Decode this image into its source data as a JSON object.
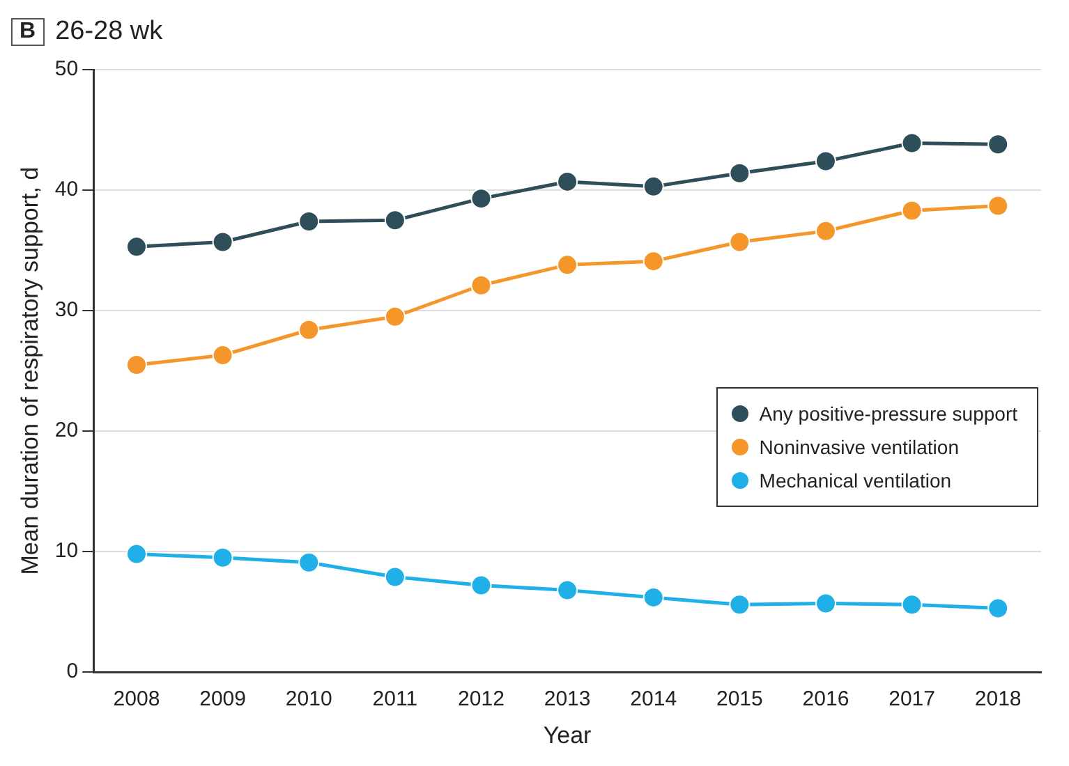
{
  "chart_data": {
    "type": "line",
    "title": "26-28 wk",
    "annotations": [
      "B"
    ],
    "xlabel": "Year",
    "ylabel": "Mean duration of respiratory support, d",
    "categories": [
      "2008",
      "2009",
      "2010",
      "2011",
      "2012",
      "2013",
      "2014",
      "2015",
      "2016",
      "2017",
      "2018"
    ],
    "series": [
      {
        "name": "Any positive-pressure support",
        "color": "#2e4e5a",
        "values": [
          35.3,
          35.7,
          37.4,
          37.5,
          39.3,
          40.7,
          40.3,
          41.4,
          42.4,
          43.9,
          43.8
        ]
      },
      {
        "name": "Noninvasive ventilation",
        "color": "#f5962a",
        "values": [
          25.5,
          26.3,
          28.4,
          29.5,
          32.1,
          33.8,
          34.1,
          35.7,
          36.6,
          38.3,
          38.7
        ]
      },
      {
        "name": "Mechanical ventilation",
        "color": "#1fb0e8",
        "values": [
          9.8,
          9.5,
          9.1,
          7.9,
          7.2,
          6.8,
          6.2,
          5.6,
          5.7,
          5.6,
          5.3
        ]
      }
    ],
    "ylim": [
      0,
      50
    ],
    "yticks": [
      0,
      10,
      20,
      30,
      40,
      50
    ],
    "grid": "y",
    "legend": "right",
    "marker": "circle",
    "line_style": "solid"
  }
}
